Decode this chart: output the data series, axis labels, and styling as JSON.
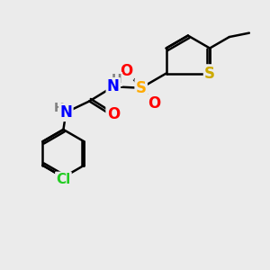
{
  "bg_color": "#ebebeb",
  "atom_colors": {
    "N": "#0000ff",
    "O": "#ff0000",
    "S_sulfonyl": "#ffaa00",
    "S_thiophene": "#ccaa00",
    "Cl": "#22cc22",
    "H": "#808080",
    "C": "#000000"
  },
  "bond_color": "#000000",
  "bond_width": 1.8,
  "font_size_atom": 12,
  "font_size_H": 10,
  "font_size_Cl": 11
}
